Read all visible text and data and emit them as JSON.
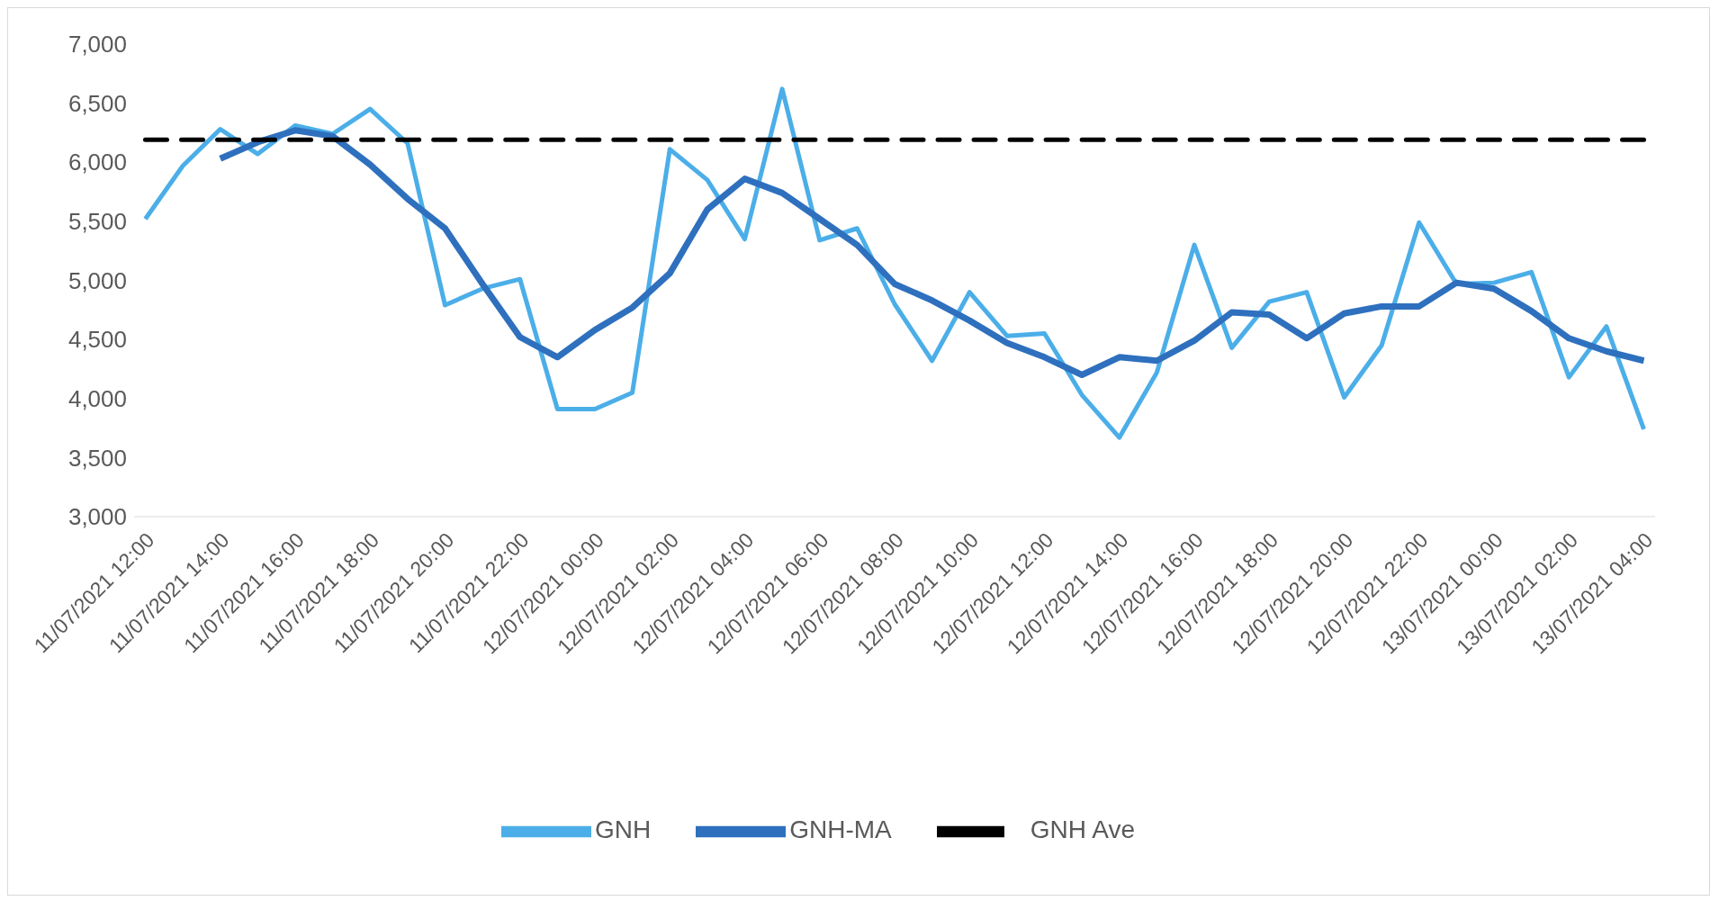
{
  "chart_data": {
    "type": "line",
    "categories": [
      "11/07/2021 12:00",
      null,
      "11/07/2021 14:00",
      null,
      "11/07/2021 16:00",
      null,
      "11/07/2021 18:00",
      null,
      "11/07/2021 20:00",
      null,
      "11/07/2021 22:00",
      null,
      "12/07/2021 00:00",
      null,
      "12/07/2021 02:00",
      null,
      "12/07/2021 04:00",
      null,
      "12/07/2021 06:00",
      null,
      "12/07/2021 08:00",
      null,
      "12/07/2021 10:00",
      null,
      "12/07/2021 12:00",
      null,
      "12/07/2021 14:00",
      null,
      "12/07/2021 16:00",
      null,
      "12/07/2021 18:00",
      null,
      "12/07/2021 20:00",
      null,
      "12/07/2021 22:00",
      null,
      "13/07/2021 00:00",
      null,
      "13/07/2021 02:00",
      null,
      "13/07/2021 04:00"
    ],
    "series": [
      {
        "name": "GNH",
        "color": "#4baee8",
        "values": [
          5520,
          5970,
          6280,
          6070,
          6310,
          6240,
          6450,
          6160,
          4790,
          4930,
          5010,
          3910,
          3910,
          4050,
          6110,
          5850,
          5350,
          6620,
          5340,
          5440,
          4800,
          4320,
          4900,
          4530,
          4550,
          4030,
          3670,
          4220,
          5300,
          4430,
          4820,
          4900,
          4010,
          4450,
          5490,
          4970,
          4980,
          5070,
          4180,
          4610,
          3740
        ]
      },
      {
        "name": "GNH-MA",
        "color": "#2e70be",
        "values": [
          null,
          null,
          6030,
          6170,
          6270,
          6220,
          5980,
          5690,
          5440,
          4970,
          4520,
          4350,
          4580,
          4770,
          5060,
          5600,
          5860,
          5740,
          5520,
          5300,
          4970,
          4830,
          4660,
          4470,
          4350,
          4200,
          4350,
          4320,
          4490,
          4730,
          4710,
          4510,
          4720,
          4780,
          4780,
          4980,
          4930,
          4740,
          4510,
          4400,
          4320
        ]
      },
      {
        "name": "GNH  Ave",
        "color": "#000000",
        "line_style": "dashed",
        "values": [
          6190,
          6190,
          6190,
          6190,
          6190,
          6190,
          6190,
          6190,
          6190,
          6190,
          6190,
          6190,
          6190,
          6190,
          6190,
          6190,
          6190,
          6190,
          6190,
          6190,
          6190,
          6190,
          6190,
          6190,
          6190,
          6190,
          6190,
          6190,
          6190,
          6190,
          6190,
          6190,
          6190,
          6190,
          6190,
          6190,
          6190,
          6190,
          6190,
          6190,
          6190
        ]
      }
    ],
    "ylim": [
      3000,
      7000
    ],
    "yticks": [
      {
        "value": 3000,
        "label": "3,000"
      },
      {
        "value": 3500,
        "label": "3,500"
      },
      {
        "value": 4000,
        "label": "4,000"
      },
      {
        "value": 4500,
        "label": "4,500"
      },
      {
        "value": 5000,
        "label": "5,000"
      },
      {
        "value": 5500,
        "label": "5,500"
      },
      {
        "value": 6000,
        "label": "6,000"
      },
      {
        "value": 6500,
        "label": "6,500"
      },
      {
        "value": 7000,
        "label": "7,000"
      }
    ],
    "grid": false,
    "legend": "bottom",
    "marker": "none",
    "line_style": "solid"
  }
}
